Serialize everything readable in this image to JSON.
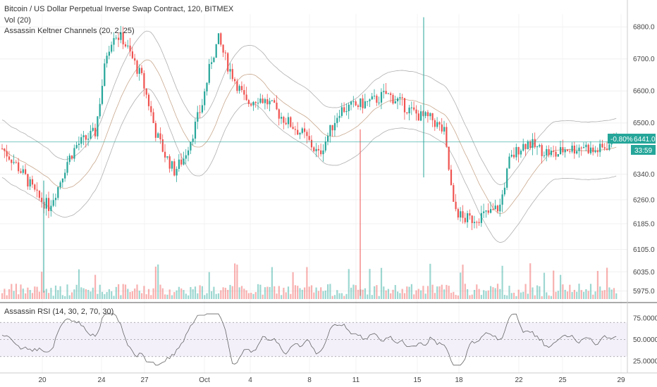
{
  "header": {
    "title": "Bitcoin / US Dollar Perpetual Inverse Swap Contract, 120, BITMEX",
    "vol_label": "Vol (20)",
    "keltner_label": "Assassin Keltner Channels (20, 2, 25)"
  },
  "rsi_panel": {
    "label": "Assassin RSI (14, 30, 2, 70, 30)",
    "axis": [
      "75.0000",
      "50.0000",
      "25.0000"
    ]
  },
  "badges": {
    "change": "-0.80%",
    "price": "6441.0",
    "timer": "33:59"
  },
  "colors": {
    "up": "#26a69a",
    "down": "#ef5350",
    "band": "#b0b0b0",
    "current_line": "#26a69a"
  },
  "chart_data": {
    "type": "candlestick",
    "price_axis": [
      "6800.0",
      "6700.0",
      "6600.0",
      "6500.0",
      "6441.0",
      "6340.0",
      "6260.0",
      "6185.0",
      "6105.0",
      "6035.0",
      "5975.0"
    ],
    "ylim": [
      5950,
      6840
    ],
    "x_labels": [
      "20",
      "24",
      "27",
      "Oct",
      "4",
      "8",
      "11",
      "15",
      "18",
      "22",
      "25",
      "29"
    ],
    "current_price": 6441.0,
    "rsi_levels": [
      70,
      50,
      30
    ],
    "rsi_ylim": [
      15,
      85
    ],
    "price_path": [
      [
        0,
        6420
      ],
      [
        5,
        6380
      ],
      [
        10,
        6330
      ],
      [
        15,
        6270
      ],
      [
        20,
        6240
      ],
      [
        24,
        6300
      ],
      [
        28,
        6380
      ],
      [
        32,
        6430
      ],
      [
        40,
        6470
      ],
      [
        45,
        6720
      ],
      [
        48,
        6780
      ],
      [
        52,
        6760
      ],
      [
        56,
        6700
      ],
      [
        60,
        6640
      ],
      [
        63,
        6560
      ],
      [
        66,
        6470
      ],
      [
        70,
        6400
      ],
      [
        74,
        6350
      ],
      [
        78,
        6390
      ],
      [
        82,
        6470
      ],
      [
        86,
        6560
      ],
      [
        90,
        6700
      ],
      [
        93,
        6760
      ],
      [
        97,
        6680
      ],
      [
        101,
        6620
      ],
      [
        105,
        6560
      ],
      [
        110,
        6580
      ],
      [
        115,
        6560
      ],
      [
        120,
        6520
      ],
      [
        125,
        6490
      ],
      [
        130,
        6460
      ],
      [
        133,
        6430
      ],
      [
        136,
        6400
      ],
      [
        140,
        6460
      ],
      [
        145,
        6540
      ],
      [
        150,
        6550
      ],
      [
        155,
        6560
      ],
      [
        160,
        6570
      ],
      [
        165,
        6590
      ],
      [
        170,
        6570
      ],
      [
        175,
        6540
      ],
      [
        180,
        6520
      ],
      [
        185,
        6510
      ],
      [
        190,
        6470
      ],
      [
        194,
        6240
      ],
      [
        198,
        6200
      ],
      [
        202,
        6200
      ],
      [
        206,
        6210
      ],
      [
        210,
        6220
      ],
      [
        214,
        6240
      ],
      [
        218,
        6380
      ],
      [
        222,
        6420
      ],
      [
        226,
        6440
      ],
      [
        230,
        6420
      ],
      [
        234,
        6410
      ],
      [
        238,
        6400
      ],
      [
        242,
        6420
      ],
      [
        246,
        6420
      ],
      [
        250,
        6430
      ],
      [
        254,
        6410
      ],
      [
        258,
        6420
      ],
      [
        262,
        6440
      ],
      [
        264,
        6480
      ]
    ]
  }
}
